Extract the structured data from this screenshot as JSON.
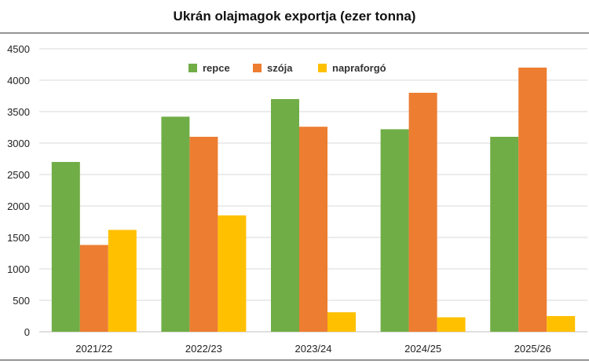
{
  "chart_data": {
    "type": "bar",
    "title": "Ukrán olajmagok exportja (ezer tonna)",
    "xlabel": "",
    "ylabel": "",
    "categories": [
      "2021/22",
      "2022/23",
      "2023/24",
      "2024/25",
      "2025/26"
    ],
    "series": [
      {
        "name": "repce",
        "color": "#70ad47",
        "values": [
          2700,
          3420,
          3700,
          3220,
          3100
        ]
      },
      {
        "name": "szója",
        "color": "#ed7d31",
        "values": [
          1380,
          3100,
          3260,
          3800,
          4200
        ]
      },
      {
        "name": "napraforgó",
        "color": "#ffc000",
        "values": [
          1620,
          1850,
          310,
          230,
          250
        ]
      }
    ],
    "ylim": [
      0,
      4500
    ],
    "yticks": [
      0,
      500,
      1000,
      1500,
      2000,
      2500,
      3000,
      3500,
      4000,
      4500
    ],
    "grid": true,
    "legend_position": "top-center"
  }
}
